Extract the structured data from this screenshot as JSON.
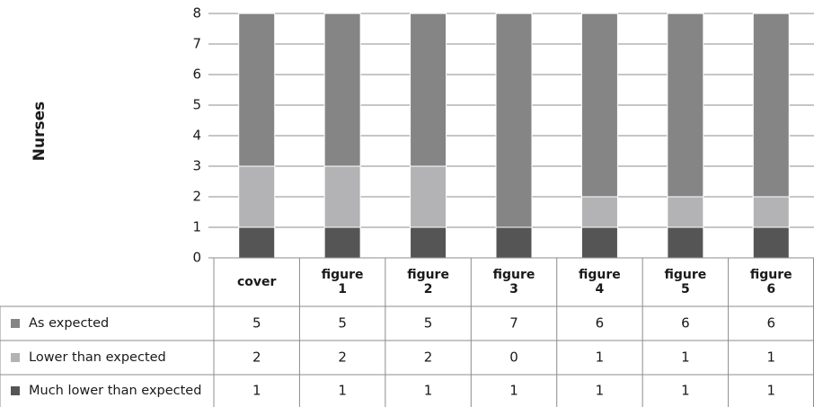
{
  "chart_data": {
    "type": "bar",
    "stacked": true,
    "ylabel": "Nurses",
    "ylim": [
      0,
      8
    ],
    "yticks": [
      "0",
      "1",
      "2",
      "3",
      "4",
      "5",
      "6",
      "7",
      "8"
    ],
    "grid": true,
    "categories": [
      [
        "cover"
      ],
      [
        "figure",
        "1"
      ],
      [
        "figure",
        "2"
      ],
      [
        "figure",
        "3"
      ],
      [
        "figure",
        "4"
      ],
      [
        "figure",
        "5"
      ],
      [
        "figure",
        "6"
      ]
    ],
    "series": [
      {
        "name": "As expected",
        "color": "#858585",
        "values": [
          5,
          5,
          5,
          7,
          6,
          6,
          6
        ]
      },
      {
        "name": "Lower than expected",
        "color": "#b3b3b5",
        "values": [
          2,
          2,
          2,
          0,
          1,
          1,
          1
        ]
      },
      {
        "name": "Much lower than expected",
        "color": "#555555",
        "values": [
          1,
          1,
          1,
          1,
          1,
          1,
          1
        ]
      }
    ],
    "legend": "data-table-left"
  }
}
